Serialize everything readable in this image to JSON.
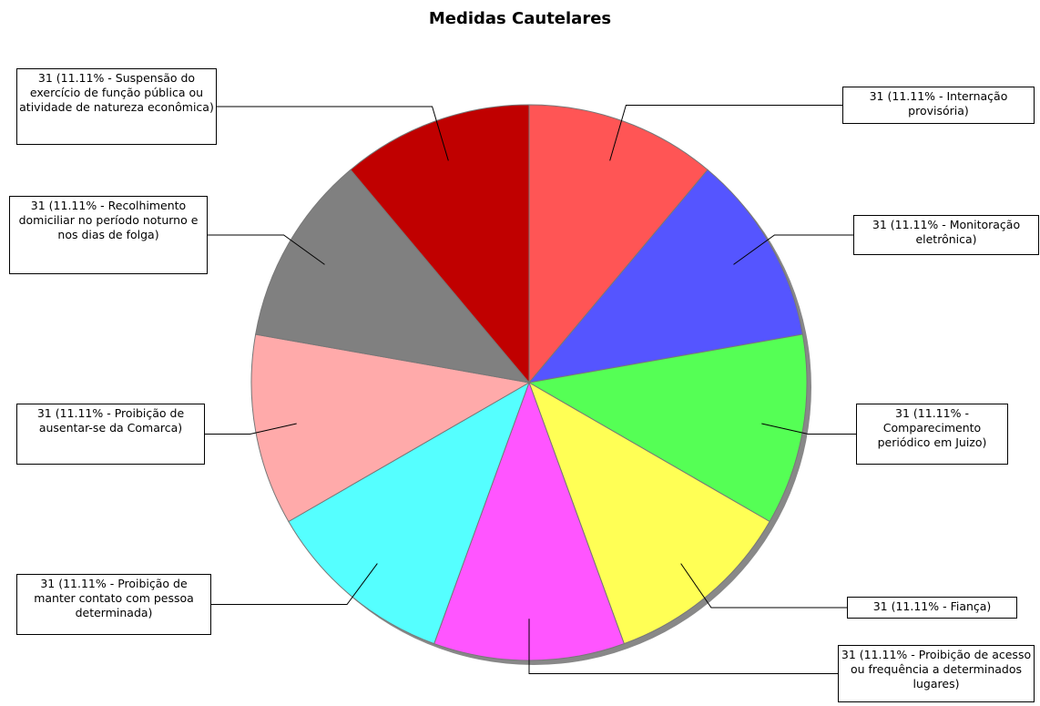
{
  "chart_data": {
    "type": "pie",
    "title": "Medidas Cautelares",
    "values": [
      31,
      31,
      31,
      31,
      31,
      31,
      31,
      31,
      31
    ],
    "value_labels": [
      "31 (11.11% - Internação provisória)",
      "31 (11.11% - Monitoração eletrônica)",
      "31 (11.11% - Comparecimento periódico em Juizo)",
      "31 (11.11% - Fiança)",
      "31 (11.11% - Proibição de acesso ou frequência a determinados lugares)",
      "31 (11.11% - Proibição de manter contato com pessoa determinada)",
      "31 (11.11% - Proibição de ausentar-se da Comarca)",
      "31 (11.11% - Recolhimento domiciliar no período noturno e nos dias de folga)",
      "31 (11.11% - Suspensão do exercício de função pública ou atividade de natureza econômica)"
    ],
    "colors": [
      "#ff5555",
      "#5555ff",
      "#55ff55",
      "#ffff55",
      "#ff55ff",
      "#55ffff",
      "#ffaaaa",
      "#808080",
      "#c00000"
    ]
  }
}
